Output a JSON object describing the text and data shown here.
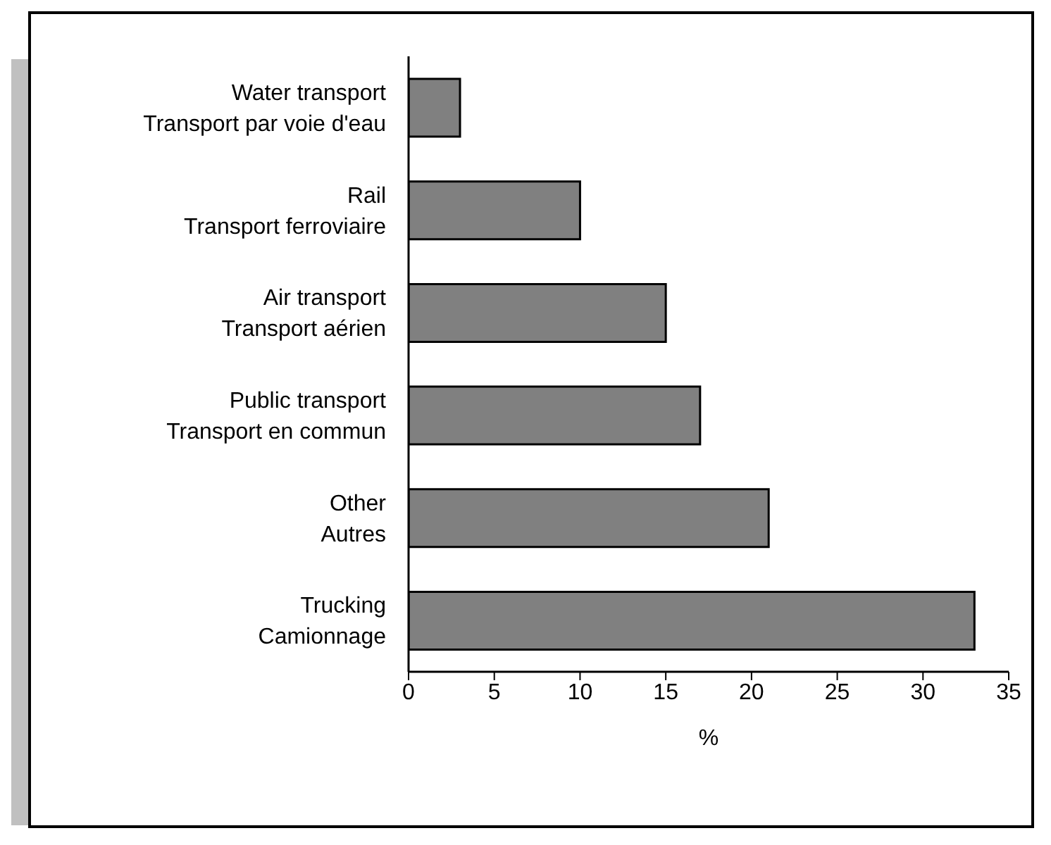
{
  "chart_data": {
    "type": "bar",
    "orientation": "horizontal",
    "xlabel": "%",
    "categories": [
      "Water transport\nTransport par voie d'eau",
      "Rail\nTransport ferroviaire",
      "Air transport\nTransport aérien",
      "Public transport\nTransport en commun",
      "Other\nAutres",
      "Trucking\nCamionnage"
    ],
    "values": [
      3,
      10,
      15,
      17,
      21,
      33
    ],
    "color": "#808080",
    "xlim": [
      0,
      35
    ],
    "xticks": [
      0,
      5,
      10,
      15,
      20,
      25,
      30,
      35
    ],
    "grid": false,
    "legend": false
  }
}
